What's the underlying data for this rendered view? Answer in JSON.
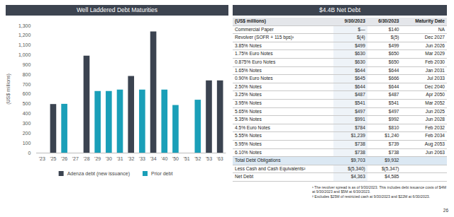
{
  "chart_data": {
    "type": "bar",
    "title": "Well Laddered Debt Maturities",
    "ylabel": "(US$ millions)",
    "categories": [
      "'23",
      "'25",
      "'26",
      "'27",
      "'28",
      "'29",
      "'30",
      "'31",
      "'32",
      "'33",
      "'34",
      "'40",
      "'50",
      "'51",
      "'52",
      "'53",
      "'63"
    ],
    "series": [
      {
        "name": "Adenza debt (new issuance)",
        "color": "#3b4350",
        "values": [
          null,
          497,
          null,
          null,
          991,
          null,
          null,
          null,
          784,
          null,
          1239,
          null,
          null,
          null,
          null,
          738,
          738
        ]
      },
      {
        "name": "Prior debt",
        "color": "#1a9fb8",
        "values": [
          null,
          null,
          499,
          null,
          null,
          630,
          630,
          644,
          null,
          645,
          null,
          644,
          487,
          null,
          541,
          null,
          null
        ]
      }
    ],
    "stacked": true,
    "ylim": [
      0,
      1300
    ],
    "yticks": [
      0,
      100,
      200,
      300,
      400,
      500,
      600,
      700,
      800,
      900,
      {
        "value": 1000,
        "label": "1,000"
      },
      {
        "value": 1100,
        "label": "1,100"
      },
      {
        "value": 1200,
        "label": "1,200"
      },
      {
        "value": 1300,
        "label": "1,300"
      }
    ],
    "grid": false,
    "legend": "bottom"
  },
  "table": {
    "title": "$4.4B Net Debt",
    "header": [
      "(US$ millions)",
      "9/30/2023",
      "6/30/2023",
      "Maturity Date"
    ],
    "rows": [
      [
        "Commercial Paper",
        "$—",
        "$140",
        "NA"
      ],
      [
        "Revolver (SOFR + 115 bps)¹",
        "$(4)",
        "$(5)",
        "Dec 2027"
      ],
      [
        "3.85% Notes",
        "$499",
        "$499",
        "Jun 2026"
      ],
      [
        "1.75% Euro Notes",
        "$630",
        "$650",
        "Mar 2029"
      ],
      [
        "0.875% Euro Notes",
        "$630",
        "$650",
        "Feb 2030"
      ],
      [
        "1.65% Notes",
        "$644",
        "$644",
        "Jan 2031"
      ],
      [
        "0.90% Euro Notes",
        "$645",
        "$666",
        "Jul 2033"
      ],
      [
        "2.50% Notes",
        "$644",
        "$644",
        "Dec 2040"
      ],
      [
        "3.25% Notes",
        "$487",
        "$487",
        "Apr 2050"
      ],
      [
        "3.95% Notes",
        "$541",
        "$541",
        "Mar 2052"
      ],
      [
        "5.65% Notes",
        "$497",
        "$497",
        "Jun 2025"
      ],
      [
        "5.35% Notes",
        "$991",
        "$992",
        "Jun 2028"
      ],
      [
        "4.5% Euro Notes",
        "$784",
        "$810",
        "Feb 2032"
      ],
      [
        "5.55% Notes",
        "$1,239",
        "$1,240",
        "Feb 2034"
      ],
      [
        "5.95% Notes",
        "$738",
        "$739",
        "Aug 2053"
      ],
      [
        "6.10% Notes",
        "$738",
        "$738",
        "Jun 2063"
      ],
      [
        "Total Debt Obligations",
        "$9,703",
        "$9,932"
      ],
      [
        "Less Cash and Cash Equivalents²",
        "$(5,340)",
        "$(5,347)"
      ],
      [
        "Net Debt",
        "$4,363",
        "$4,585"
      ]
    ]
  },
  "footnotes": [
    "¹ The revolver spread is as of 9/30/2023. This includes debt issuance costs of $4M at 9/30/2023 and $5M at 6/30/2023.",
    "² Excludes $25M of restricted cash at 9/30/2023 and $22M at 6/30/2023."
  ],
  "page_number": "26"
}
